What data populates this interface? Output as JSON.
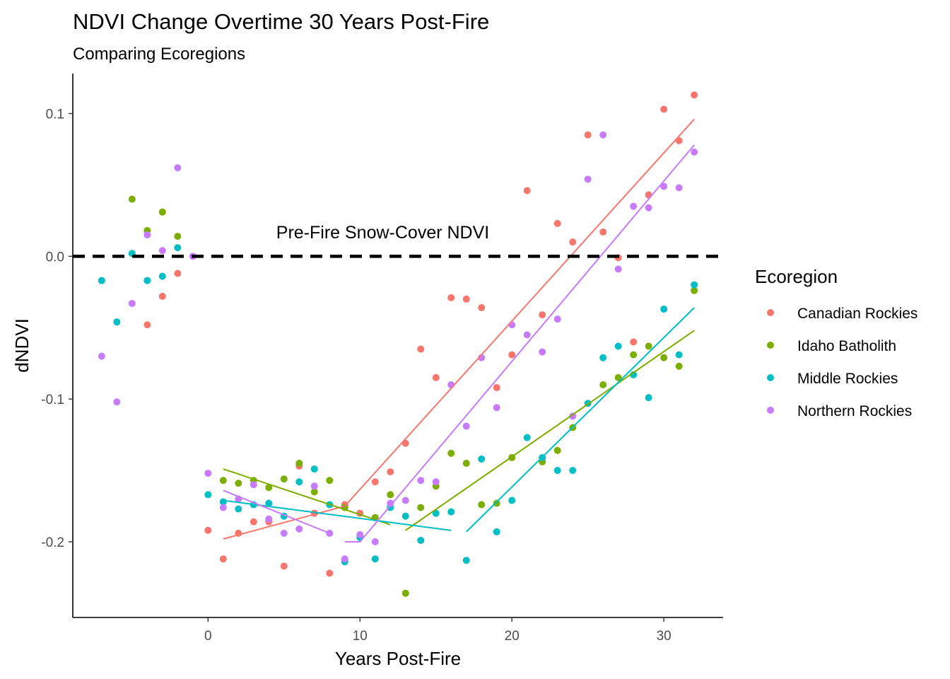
{
  "chart_data": {
    "type": "scatter",
    "title": "NDVI Change Overtime 30 Years Post-Fire",
    "subtitle": "Comparing Ecoregions",
    "xlabel": "Years Post-Fire",
    "ylabel": "dNDVI",
    "xlim": [
      -8.9,
      33.9
    ],
    "ylim": [
      -0.253,
      0.128
    ],
    "x_ticks": [
      0,
      10,
      20,
      30
    ],
    "y_ticks": [
      -0.2,
      -0.1,
      0.0,
      0.1
    ],
    "x_tick_labels": [
      "0",
      "10",
      "20",
      "30"
    ],
    "y_tick_labels": [
      "-0.2",
      "-0.1",
      "0.0",
      "0.1"
    ],
    "grid": false,
    "legend": {
      "title": "Ecoregion",
      "position": "right"
    },
    "reference_line": {
      "y": 0.0,
      "style": "dashed",
      "color": "#000000",
      "label": "Pre-Fire Snow-Cover NDVI",
      "label_x": 11.5,
      "label_y": 0.0125
    },
    "series": [
      {
        "name": "Canadian Rockies",
        "color": "#F8766D",
        "points": [
          [
            -4,
            -0.048
          ],
          [
            -3,
            -0.028
          ],
          [
            -2,
            -0.012
          ],
          [
            0,
            -0.192
          ],
          [
            1,
            -0.212
          ],
          [
            2,
            -0.194
          ],
          [
            3,
            -0.186
          ],
          [
            4,
            -0.186
          ],
          [
            5,
            -0.217
          ],
          [
            6,
            -0.147
          ],
          [
            7,
            -0.18
          ],
          [
            8,
            -0.222
          ],
          [
            9,
            -0.174
          ],
          [
            10,
            -0.18
          ],
          [
            11,
            -0.158
          ],
          [
            12,
            -0.151
          ],
          [
            13,
            -0.131
          ],
          [
            14,
            -0.065
          ],
          [
            15,
            -0.085
          ],
          [
            16,
            -0.029
          ],
          [
            17,
            -0.03
          ],
          [
            18,
            -0.036
          ],
          [
            19,
            -0.092
          ],
          [
            20,
            -0.069
          ],
          [
            21,
            0.046
          ],
          [
            22,
            -0.041
          ],
          [
            23,
            0.023
          ],
          [
            24,
            0.01
          ],
          [
            25,
            0.085
          ],
          [
            26,
            0.017
          ],
          [
            27,
            -0.001
          ],
          [
            28,
            -0.06
          ],
          [
            29,
            0.043
          ],
          [
            30,
            0.103
          ],
          [
            31,
            0.081
          ],
          [
            32,
            0.113
          ]
        ],
        "fit_lines": [
          [
            [
              1,
              -0.198
            ],
            [
              9,
              -0.175
            ]
          ],
          [
            [
              9,
              -0.175
            ],
            [
              32,
              0.096
            ]
          ]
        ]
      },
      {
        "name": "Idaho Batholith",
        "color": "#7CAE00",
        "points": [
          [
            -5,
            0.04
          ],
          [
            -4,
            0.018
          ],
          [
            -3,
            0.031
          ],
          [
            -2,
            0.014
          ],
          [
            1,
            -0.157
          ],
          [
            2,
            -0.159
          ],
          [
            3,
            -0.157
          ],
          [
            4,
            -0.162
          ],
          [
            5,
            -0.156
          ],
          [
            6,
            -0.145
          ],
          [
            7,
            -0.165
          ],
          [
            8,
            -0.157
          ],
          [
            9,
            -0.176
          ],
          [
            11,
            -0.183
          ],
          [
            12,
            -0.167
          ],
          [
            13,
            -0.236
          ],
          [
            14,
            -0.176
          ],
          [
            15,
            -0.161
          ],
          [
            16,
            -0.138
          ],
          [
            17,
            -0.145
          ],
          [
            18,
            -0.174
          ],
          [
            19,
            -0.173
          ],
          [
            20,
            -0.141
          ],
          [
            22,
            -0.144
          ],
          [
            23,
            -0.136
          ],
          [
            24,
            -0.12
          ],
          [
            26,
            -0.09
          ],
          [
            27,
            -0.085
          ],
          [
            28,
            -0.069
          ],
          [
            29,
            -0.063
          ],
          [
            30,
            -0.071
          ],
          [
            31,
            -0.077
          ],
          [
            32,
            -0.024
          ]
        ],
        "fit_lines": [
          [
            [
              1,
              -0.149
            ],
            [
              12,
              -0.188
            ]
          ],
          [
            [
              13,
              -0.192
            ],
            [
              32,
              -0.052
            ]
          ]
        ]
      },
      {
        "name": "Middle Rockies",
        "color": "#00BFC4",
        "points": [
          [
            -7,
            -0.017
          ],
          [
            -6,
            -0.046
          ],
          [
            -5,
            0.002
          ],
          [
            -4,
            -0.017
          ],
          [
            -3,
            -0.014
          ],
          [
            -2,
            0.006
          ],
          [
            0,
            -0.167
          ],
          [
            1,
            -0.172
          ],
          [
            2,
            -0.177
          ],
          [
            3,
            -0.174
          ],
          [
            4,
            -0.173
          ],
          [
            5,
            -0.182
          ],
          [
            6,
            -0.158
          ],
          [
            7,
            -0.149
          ],
          [
            8,
            -0.174
          ],
          [
            9,
            -0.214
          ],
          [
            10,
            -0.197
          ],
          [
            11,
            -0.212
          ],
          [
            12,
            -0.176
          ],
          [
            13,
            -0.182
          ],
          [
            14,
            -0.199
          ],
          [
            15,
            -0.18
          ],
          [
            16,
            -0.179
          ],
          [
            17,
            -0.213
          ],
          [
            18,
            -0.142
          ],
          [
            19,
            -0.193
          ],
          [
            20,
            -0.171
          ],
          [
            21,
            -0.127
          ],
          [
            22,
            -0.141
          ],
          [
            23,
            -0.15
          ],
          [
            24,
            -0.15
          ],
          [
            25,
            -0.103
          ],
          [
            26,
            -0.071
          ],
          [
            27,
            -0.063
          ],
          [
            28,
            -0.083
          ],
          [
            29,
            -0.099
          ],
          [
            30,
            -0.037
          ],
          [
            31,
            -0.069
          ],
          [
            32,
            -0.02
          ]
        ],
        "fit_lines": [
          [
            [
              1,
              -0.171
            ],
            [
              16,
              -0.192
            ]
          ],
          [
            [
              17,
              -0.193
            ],
            [
              32,
              -0.036
            ]
          ]
        ]
      },
      {
        "name": "Northern Rockies",
        "color": "#C77CFF",
        "points": [
          [
            -7,
            -0.07
          ],
          [
            -6,
            -0.102
          ],
          [
            -5,
            -0.033
          ],
          [
            -4,
            0.015
          ],
          [
            -3,
            0.004
          ],
          [
            -2,
            0.062
          ],
          [
            -1,
            0.0
          ],
          [
            0,
            -0.152
          ],
          [
            1,
            -0.176
          ],
          [
            2,
            -0.17
          ],
          [
            3,
            -0.16
          ],
          [
            4,
            -0.184
          ],
          [
            5,
            -0.194
          ],
          [
            6,
            -0.191
          ],
          [
            7,
            -0.161
          ],
          [
            8,
            -0.194
          ],
          [
            9,
            -0.212
          ],
          [
            10,
            -0.195
          ],
          [
            11,
            -0.2
          ],
          [
            12,
            -0.173
          ],
          [
            13,
            -0.171
          ],
          [
            14,
            -0.157
          ],
          [
            15,
            -0.158
          ],
          [
            16,
            -0.09
          ],
          [
            17,
            -0.119
          ],
          [
            18,
            -0.071
          ],
          [
            19,
            -0.106
          ],
          [
            20,
            -0.048
          ],
          [
            21,
            -0.055
          ],
          [
            22,
            -0.067
          ],
          [
            23,
            -0.044
          ],
          [
            24,
            -0.112
          ],
          [
            25,
            0.054
          ],
          [
            26,
            0.085
          ],
          [
            27,
            -0.009
          ],
          [
            28,
            0.035
          ],
          [
            29,
            0.034
          ],
          [
            30,
            0.049
          ],
          [
            31,
            0.048
          ],
          [
            32,
            0.073
          ]
        ],
        "fit_lines": [
          [
            [
              1,
              -0.164
            ],
            [
              8,
              -0.194
            ]
          ],
          [
            [
              9,
              -0.2
            ],
            [
              10,
              -0.2
            ],
            [
              32,
              0.078
            ]
          ]
        ]
      }
    ]
  }
}
